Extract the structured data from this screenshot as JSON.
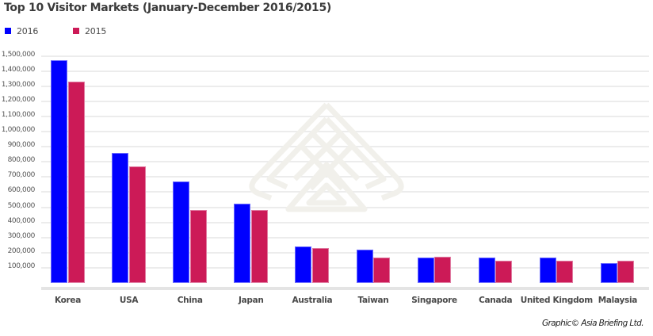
{
  "chart_data": {
    "type": "bar",
    "title": "Top 10 Visitor Markets (January-December 2016/2015)",
    "xlabel": "",
    "ylabel": "",
    "categories": [
      "Korea",
      "USA",
      "China",
      "Japan",
      "Australia",
      "Taiwan",
      "Singapore",
      "Canada",
      "United Kingdom",
      "Malaysia"
    ],
    "series": [
      {
        "name": "2016",
        "color": "#0000ff",
        "values": [
          1470000,
          860000,
          668000,
          526000,
          243000,
          222000,
          168000,
          168000,
          168000,
          131000
        ]
      },
      {
        "name": "2015",
        "color": "#cc1a57",
        "values": [
          1332000,
          770000,
          480000,
          484000,
          230000,
          168000,
          175000,
          144000,
          144000,
          144000
        ]
      }
    ],
    "ylim": [
      0,
      1500000
    ],
    "yticks": [
      "100,000",
      "200,000",
      "300,000",
      "400,000",
      "500,000",
      "600,000",
      "700,000",
      "800,000",
      "900,000",
      "1,000,000",
      "1,100,000",
      "1,200,000",
      "1,300,000",
      "1,400,000",
      "1,500,000"
    ],
    "grid": true,
    "legend_position": "top-left"
  },
  "title": "Top 10 Visitor Markets (January-December 2016/2015)",
  "legend": [
    {
      "label": "2016",
      "color": "#0000ff"
    },
    {
      "label": "2015",
      "color": "#cc1a57"
    }
  ],
  "credit": "Graphic© Asia Briefing Ltd.",
  "watermark_icon": "asia-briefing-logo"
}
